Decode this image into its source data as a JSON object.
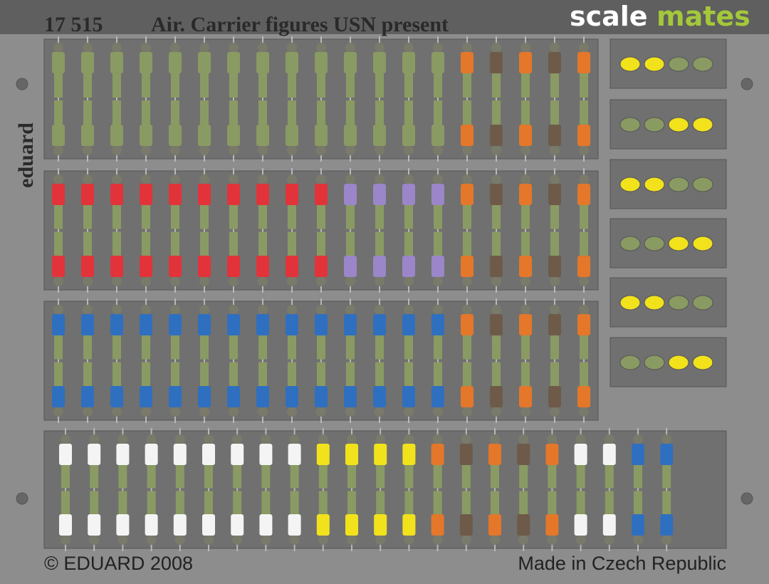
{
  "header": {
    "code": "17 515",
    "title": "Air. Carrier figures USN present"
  },
  "watermark": {
    "part1": "scale",
    "part2": "mates"
  },
  "side_label": "eduard",
  "footer": {
    "copyright": "© EDUARD 2008",
    "origin": "Made in Czech Republic"
  }
}
